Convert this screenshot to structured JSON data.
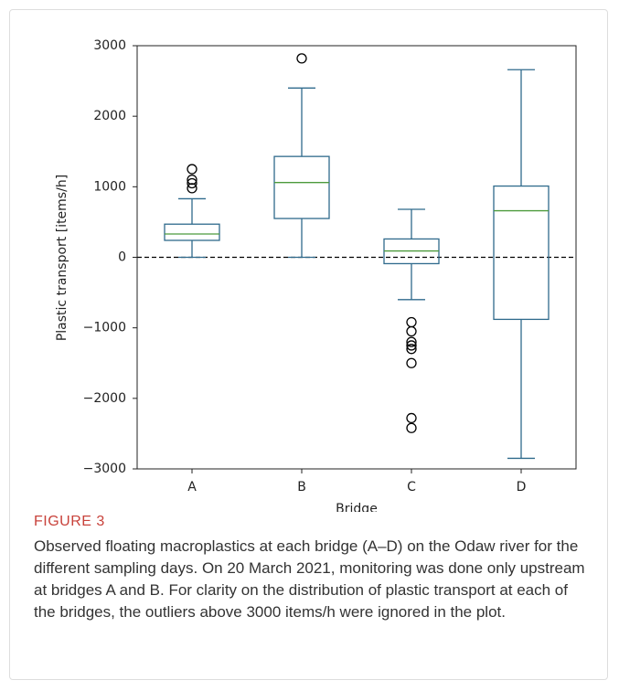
{
  "chart_data": {
    "type": "box",
    "xlabel": "Bridge",
    "ylabel": "Plastic transport [items/h]",
    "categories": [
      "A",
      "B",
      "C",
      "D"
    ],
    "boxes": [
      {
        "whislo": 0,
        "q1": 240,
        "med": 330,
        "q3": 470,
        "whishi": 830,
        "fliers": [
          1250,
          1100,
          1050,
          980
        ]
      },
      {
        "whislo": 0,
        "q1": 550,
        "med": 1060,
        "q3": 1430,
        "whishi": 2400,
        "fliers": [
          2820
        ]
      },
      {
        "whislo": -600,
        "q1": -90,
        "med": 90,
        "q3": 260,
        "whishi": 680,
        "fliers": [
          -920,
          -1050,
          -1200,
          -1250,
          -1300,
          -1500,
          -2280,
          -2420
        ]
      },
      {
        "whislo": -2850,
        "q1": -880,
        "med": 660,
        "q3": 1010,
        "whishi": 2660,
        "fliers": []
      }
    ],
    "box_color": "#2f6a8c",
    "median_color": "#4c9a3c",
    "flier_color": "#000000",
    "reference_line": 0,
    "ylim": [
      -3000,
      3000
    ],
    "yticks": [
      {
        "value": -3000,
        "label": "−3000"
      },
      {
        "value": -2000,
        "label": "−2000"
      },
      {
        "value": -1000,
        "label": "−1000"
      },
      0,
      1000,
      2000,
      3000
    ]
  },
  "caption": {
    "label": "FIGURE 3",
    "text": "Observed floating macroplastics at each bridge (A–D) on the Odaw river for the different sampling days. On 20 March 2021, monitoring was done only upstream at bridges A and B. For clarity on the distribution of plastic transport at each of the bridges, the outliers above 3000 items/h were ignored in the plot."
  }
}
